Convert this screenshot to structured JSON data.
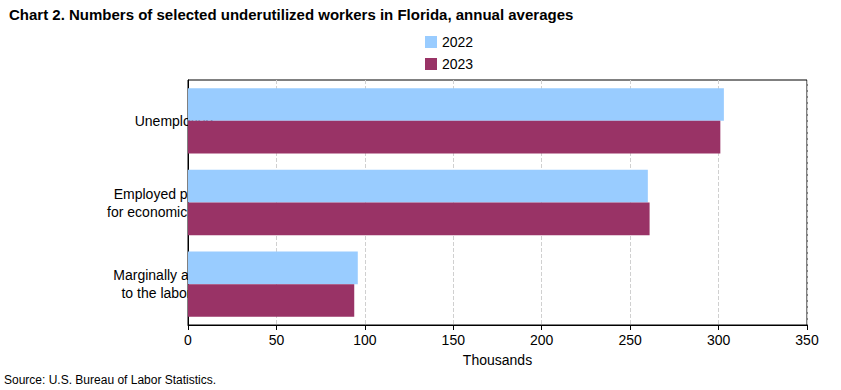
{
  "chart_data": {
    "type": "bar",
    "orientation": "horizontal",
    "title": "Chart 2. Numbers of selected underutilized workers in Florida, annual averages",
    "categories": [
      "Unemployed",
      "Employed part time\nfor economic reasons",
      "Marginally attached\nto the labor force"
    ],
    "series": [
      {
        "name": "2022",
        "color": "#99ccff",
        "values": [
          303,
          260,
          96
        ]
      },
      {
        "name": "2023",
        "color": "#993366",
        "values": [
          301,
          261,
          94
        ]
      }
    ],
    "xlabel": "Thousands",
    "xlim": [
      0,
      350
    ],
    "xticks": [
      0,
      50,
      100,
      150,
      200,
      250,
      300,
      350
    ],
    "grid": true,
    "legend": "top",
    "source": "Source: U.S. Bureau of Labor Statistics."
  }
}
